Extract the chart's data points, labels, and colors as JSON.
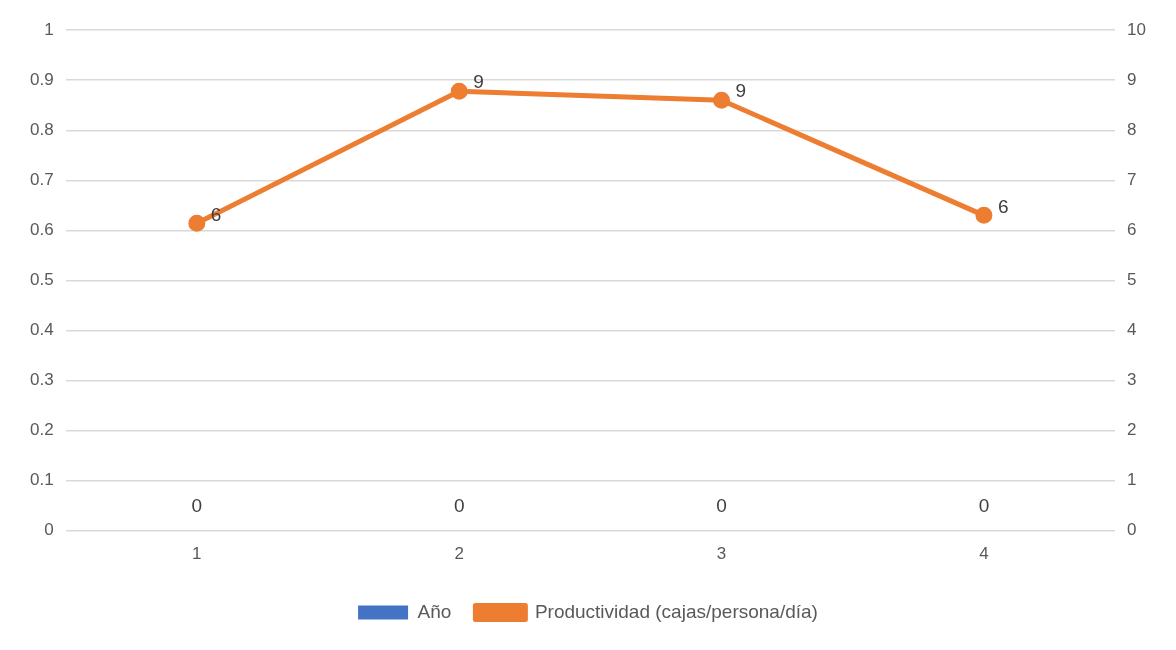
{
  "chart_data": {
    "type": "bar",
    "categories": [
      "1",
      "2",
      "3",
      "4"
    ],
    "series": [
      {
        "name": "Año",
        "color": "#4472c4",
        "values": [
          0,
          0,
          0,
          0
        ],
        "value_labels": [
          "0",
          "0",
          "0",
          "0"
        ]
      },
      {
        "name": "Productividad (cajas/persona/día)",
        "type": "line",
        "axis": "y2",
        "color": "#ed7d31",
        "values": [
          6.14,
          8.78,
          8.6,
          6.3
        ],
        "value_labels": [
          "6",
          "9",
          "9",
          "6"
        ]
      }
    ],
    "ylim": [
      0,
      1
    ],
    "yticks": [
      0,
      0.1,
      0.2,
      0.3,
      0.4,
      0.5,
      0.6,
      0.7,
      0.8,
      0.9,
      1
    ],
    "y2lim": [
      0,
      10
    ],
    "y2ticks": [
      0,
      1,
      2,
      3,
      4,
      5,
      6,
      7,
      8,
      9,
      10
    ],
    "grid": "y",
    "legend": "bottom",
    "marker": "circle",
    "line_style": "solid"
  }
}
